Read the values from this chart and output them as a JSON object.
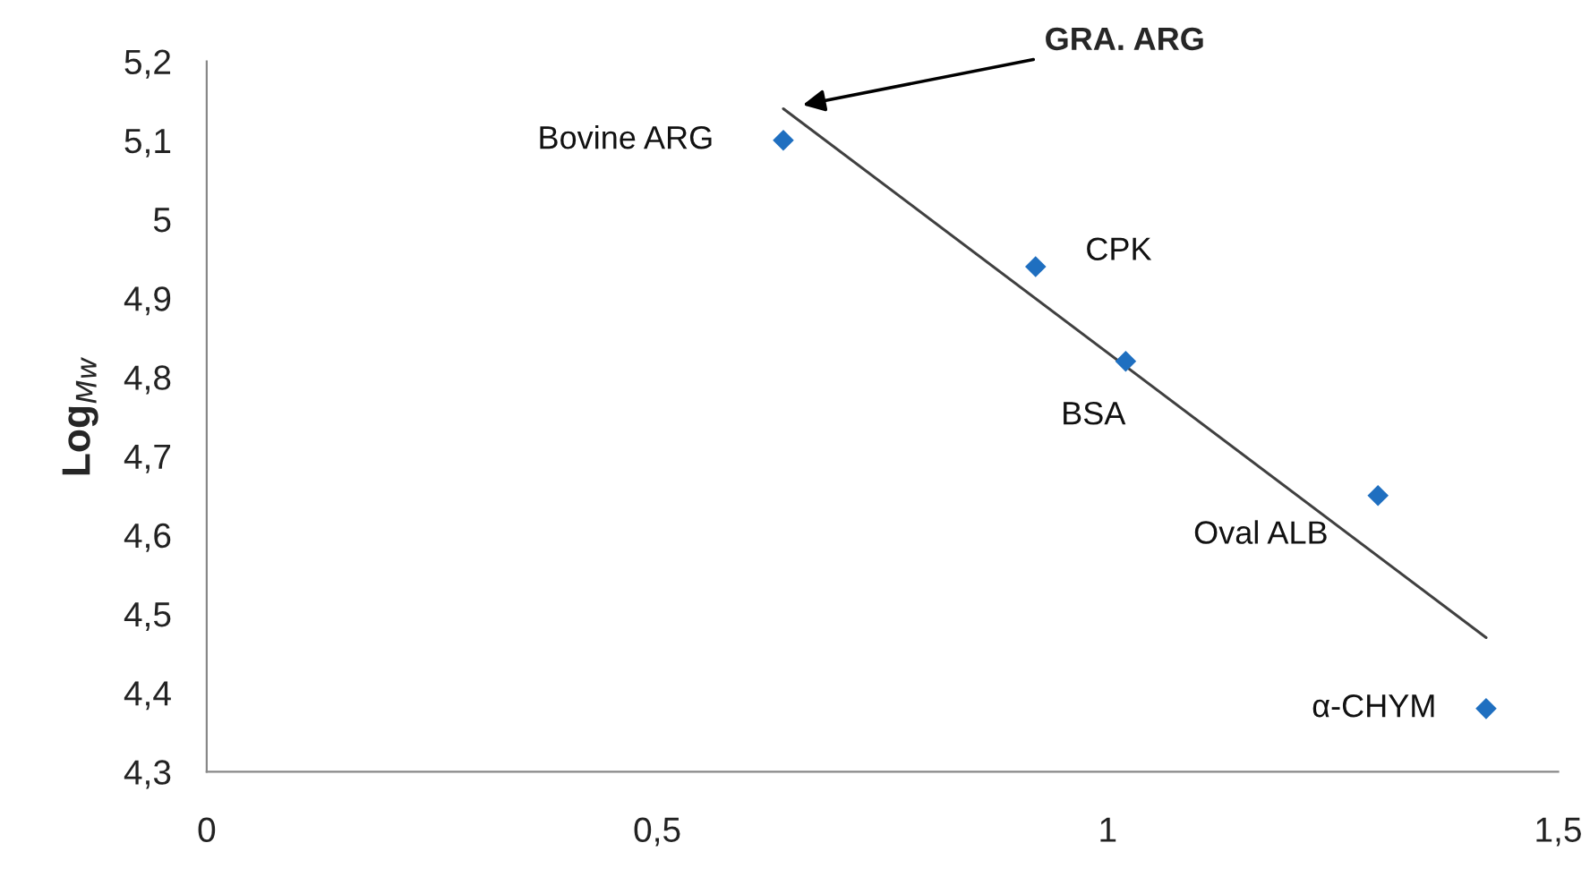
{
  "chart_data": {
    "type": "scatter",
    "ylabel": "Log$_{Mw}$",
    "x": [
      0.64,
      0.92,
      1.02,
      1.3,
      1.42
    ],
    "series": [
      {
        "color": "#1f6fc0",
        "values": [
          5.1,
          4.94,
          4.82,
          4.65,
          4.38
        ],
        "marker": "diamond"
      },
      {
        "type": "line",
        "color": "#404040",
        "x": [
          0.64,
          1.42
        ],
        "values": [
          5.14,
          4.47
        ],
        "marker": "none",
        "line_style": "solid"
      }
    ],
    "xlim": [
      0,
      1.5
    ],
    "xticks": [
      0,
      {
        "value": 0.5,
        "label": "0,5"
      },
      1,
      {
        "value": 1.5,
        "label": "1,5"
      }
    ],
    "ylim": [
      4.3,
      5.2
    ],
    "yticks": [
      {
        "value": 4.3,
        "label": "4,3"
      },
      {
        "value": 4.4,
        "label": "4,4"
      },
      {
        "value": 4.5,
        "label": "4,5"
      },
      {
        "value": 4.6,
        "label": "4,6"
      },
      {
        "value": 4.7,
        "label": "4,7"
      },
      {
        "value": 4.8,
        "label": "4,8"
      },
      {
        "value": 4.9,
        "label": "4,9"
      },
      5,
      {
        "value": 5.1,
        "label": "5,1"
      },
      {
        "value": 5.2,
        "label": "5,2"
      }
    ],
    "grid": false,
    "legend": false,
    "annotations": [
      {
        "text": "Bovine ARG",
        "x": 0.64,
        "y": 5.1
      },
      {
        "text": "CPK",
        "x": 0.92,
        "y": 4.94
      },
      {
        "text": "BSA",
        "x": 1.02,
        "y": 4.82
      },
      {
        "text": "Oval ALB",
        "x": 1.3,
        "y": 4.65
      },
      {
        "text": "α-CHYM",
        "x": 1.42,
        "y": 4.38
      },
      "GRA. ARG"
    ]
  }
}
